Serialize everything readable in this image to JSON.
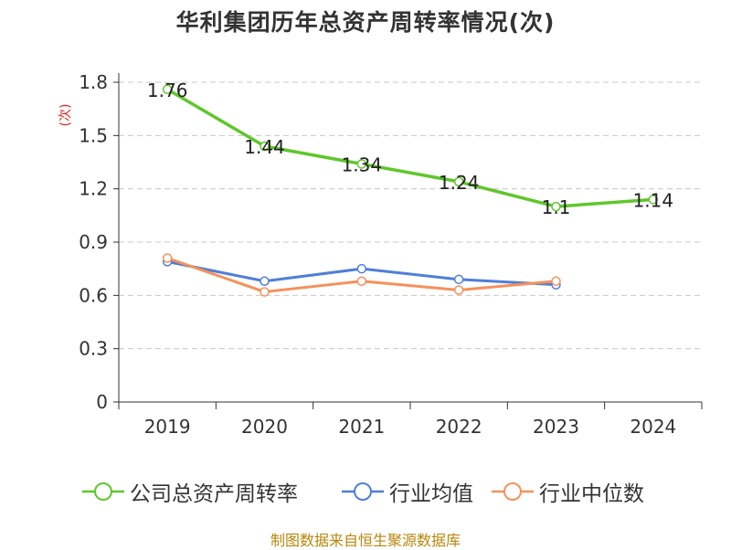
{
  "title": "华利集团历年总资产周转率情况(次)",
  "unit_label": "(次)",
  "source": "制图数据来自恒生聚源数据库",
  "chart_data": {
    "type": "line",
    "title": "华利集团历年总资产周转率情况(次)",
    "xlabel": "",
    "ylabel": "(次)",
    "categories": [
      "2019",
      "2020",
      "2021",
      "2022",
      "2023",
      "2024"
    ],
    "y_ticks": [
      "0",
      "0.3",
      "0.6",
      "0.9",
      "1.2",
      "1.5",
      "1.8"
    ],
    "ylim": [
      0,
      1.8
    ],
    "grid": true,
    "legend_position": "bottom",
    "series": [
      {
        "name": "公司总资产周转率",
        "color": "#5ec72b",
        "values": [
          1.76,
          1.44,
          1.34,
          1.24,
          1.1,
          1.14
        ],
        "labels": [
          "1.76",
          "1.44",
          "1.34",
          "1.24",
          "1.1",
          "1.14"
        ]
      },
      {
        "name": "行业均值",
        "color": "#4f7fd8",
        "values": [
          0.79,
          0.68,
          0.75,
          0.69,
          0.66,
          null
        ]
      },
      {
        "name": "行业中位数",
        "color": "#f5915a",
        "values": [
          0.81,
          0.62,
          0.68,
          0.63,
          0.68,
          null
        ]
      }
    ]
  }
}
